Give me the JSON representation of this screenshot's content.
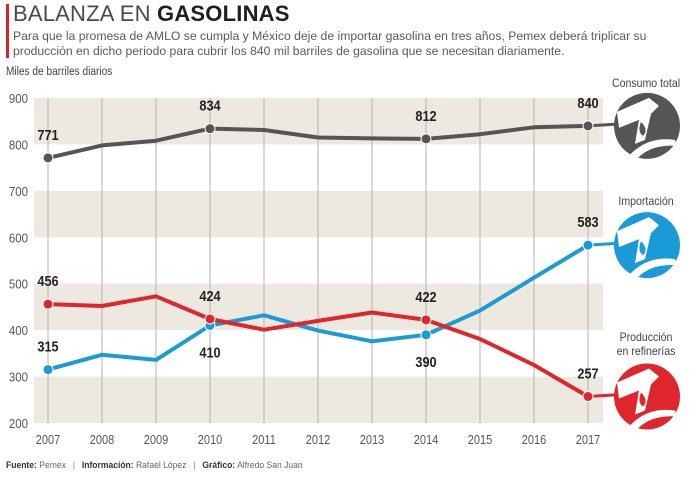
{
  "header": {
    "title_light": "BALANZA EN ",
    "title_bold": "GASOLINAS",
    "subtitle": "Para que la promesa de AMLO se cumpla y México deje de importar gasolina en tres años, Pemex deberá triplicar su producción en dicho periodo para cubrir los 840 mil barriles de gasolina que se necesitan diariamente.",
    "accent_color": "#d9232b"
  },
  "footer": {
    "source_label": "Fuente:",
    "source_value": "Pemex",
    "info_label": "Información:",
    "info_value": "Rafael López",
    "graphic_label": "Gráfico:",
    "graphic_value": "Alfredo San Juan",
    "separator": "|"
  },
  "chart_data": {
    "type": "line",
    "title": "BALANZA EN GASOLINAS",
    "ylabel": "Miles de barriles diarios",
    "xlabel": "",
    "ylim": [
      200,
      900
    ],
    "yticks": [
      200,
      300,
      400,
      500,
      600,
      700,
      800,
      900
    ],
    "x": [
      "2007",
      "2008",
      "2009",
      "2010",
      "2011",
      "2012",
      "2013",
      "2014",
      "2015",
      "2016",
      "2017"
    ],
    "shaded_bands": [
      [
        200,
        300
      ],
      [
        400,
        500
      ],
      [
        600,
        700
      ],
      [
        800,
        900
      ]
    ],
    "band_color": "#ede9e0",
    "grid": "vertical",
    "legend": "right",
    "series": [
      {
        "name": "Consumo total",
        "color": "#555555",
        "values": [
          771,
          798,
          808,
          834,
          831,
          815,
          813,
          812,
          822,
          837,
          840
        ],
        "labeled_points": [
          {
            "year": "2007",
            "value": 771,
            "pos": "above"
          },
          {
            "year": "2010",
            "value": 834,
            "pos": "above"
          },
          {
            "year": "2014",
            "value": 812,
            "pos": "above"
          },
          {
            "year": "2017",
            "value": 840,
            "pos": "above"
          }
        ]
      },
      {
        "name": "Importación",
        "color": "#1a9ad6",
        "values": [
          315,
          347,
          336,
          410,
          432,
          399,
          376,
          390,
          442,
          513,
          583
        ],
        "labeled_points": [
          {
            "year": "2007",
            "value": 315,
            "pos": "above"
          },
          {
            "year": "2010",
            "value": 410,
            "pos": "below"
          },
          {
            "year": "2014",
            "value": 390,
            "pos": "below"
          },
          {
            "year": "2017",
            "value": 583,
            "pos": "above"
          }
        ]
      },
      {
        "name": "Producción en refinerías",
        "name_lines": [
          "Producción",
          "en refinerías"
        ],
        "color": "#e0262d",
        "values": [
          456,
          452,
          473,
          424,
          401,
          420,
          438,
          422,
          381,
          325,
          257
        ],
        "labeled_points": [
          {
            "year": "2007",
            "value": 456,
            "pos": "above"
          },
          {
            "year": "2010",
            "value": 424,
            "pos": "above"
          },
          {
            "year": "2014",
            "value": 422,
            "pos": "above"
          },
          {
            "year": "2017",
            "value": 257,
            "pos": "above"
          }
        ]
      }
    ],
    "icons": [
      "gas-pump-nozzle-icon"
    ]
  }
}
